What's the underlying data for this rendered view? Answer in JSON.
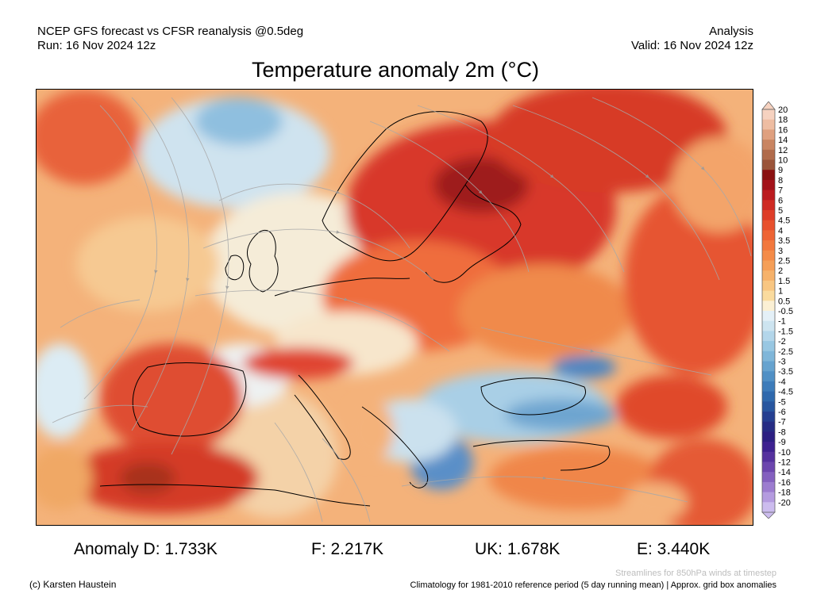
{
  "header": {
    "model_line": "NCEP GFS forecast vs CFSR reanalysis @0.5deg",
    "run_line": "Run: 16 Nov 2024 12z",
    "mode_label": "Analysis",
    "valid_line": "Valid: 16 Nov 2024 12z"
  },
  "title": "Temperature anomaly 2m (°C)",
  "colorbar": {
    "labels": [
      "20",
      "18",
      "16",
      "14",
      "12",
      "10",
      "9",
      "8",
      "7",
      "6",
      "5",
      "4.5",
      "4",
      "3.5",
      "3",
      "2.5",
      "2",
      "1.5",
      "1",
      "0.5",
      "-0.5",
      "-1",
      "-1.5",
      "-2",
      "-2.5",
      "-3",
      "-3.5",
      "-4",
      "-4.5",
      "-5",
      "-6",
      "-7",
      "-8",
      "-9",
      "-10",
      "-12",
      "-14",
      "-16",
      "-18",
      "-20"
    ],
    "colors": [
      "#f6d2c0",
      "#eebda2",
      "#dfa07f",
      "#c98562",
      "#b06b4b",
      "#9a543a",
      "#8a1010",
      "#a3121a",
      "#bb1b1f",
      "#cf2a23",
      "#de3d28",
      "#e8512d",
      "#ee6434",
      "#f2783d",
      "#f48b48",
      "#f59f58",
      "#f6b26b",
      "#f8c682",
      "#fadb9e",
      "#fbf0d4",
      "#e4f0f7",
      "#cde4f0",
      "#b3d6ea",
      "#98c7e2",
      "#7fb6d9",
      "#66a3cf",
      "#5090c5",
      "#3d7cba",
      "#2f69ad",
      "#28569f",
      "#253f91",
      "#262c84",
      "#2c1f82",
      "#3d2190",
      "#55319e",
      "#6c46ae",
      "#8460bf",
      "#9c7ccf",
      "#b49bdf",
      "#ccbcee"
    ]
  },
  "stats": {
    "d": "Anomaly D: 1.733K",
    "f": "F: 2.217K",
    "uk": "UK: 1.678K",
    "e": "E: 3.440K"
  },
  "footer": {
    "copyright": "(c) Karsten Haustein",
    "streamlines_note": "Streamlines for 850hPa winds at timestep",
    "climatology_note": "Climatology for 1981-2010 reference period (5 day running mean) | Approx. grid box anomalies"
  }
}
